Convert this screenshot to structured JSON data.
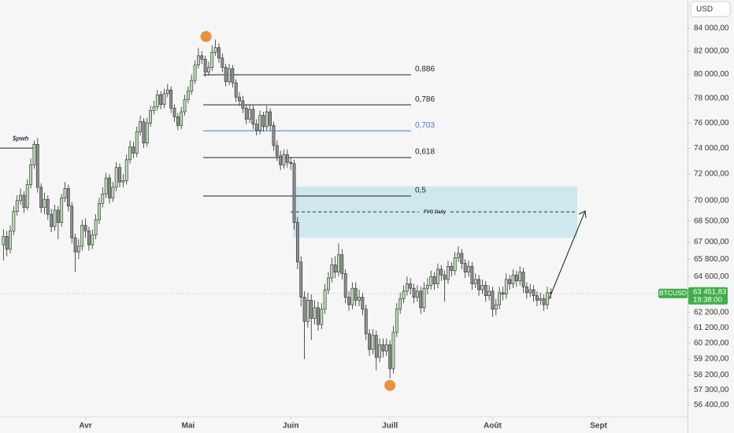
{
  "chart_data": {
    "type": "candlestick",
    "symbol": "BTCUSD",
    "currency": "USD",
    "interval": "1D",
    "countdown": "19:38:00",
    "last_price": {
      "value": 63451.83,
      "label": "63 451,83"
    },
    "log_scale": true,
    "grid": false,
    "up_color": "#b8dcb2",
    "down_color": "#8f8f8f",
    "outline_color": "#2a2a2a",
    "price_line_color": "#3fae4a",
    "ylim": [
      55660,
      86560
    ],
    "yticks": [
      {
        "value": 84000,
        "label": "84 000,00"
      },
      {
        "value": 82000,
        "label": "82 000,00"
      },
      {
        "value": 80000,
        "label": "80 000,00"
      },
      {
        "value": 78000,
        "label": "78 000,00"
      },
      {
        "value": 76000,
        "label": "76 000,00"
      },
      {
        "value": 74000,
        "label": "74 000,00"
      },
      {
        "value": 72000,
        "label": "72 000,00"
      },
      {
        "value": 70000,
        "label": "70 000,00"
      },
      {
        "value": 68500,
        "label": "68 500,00"
      },
      {
        "value": 67000,
        "label": "67 000,00"
      },
      {
        "value": 65800,
        "label": "65 800,00"
      },
      {
        "value": 64600,
        "label": "64 600,00"
      },
      {
        "value": 62200,
        "label": "62 200,00"
      },
      {
        "value": 61200,
        "label": "61 200,00"
      },
      {
        "value": 60200,
        "label": "60 200,00"
      },
      {
        "value": 59200,
        "label": "59 200,00"
      },
      {
        "value": 58200,
        "label": "58 200,00"
      },
      {
        "value": 57300,
        "label": "57 300,00"
      },
      {
        "value": 56400,
        "label": "56 400,00"
      }
    ],
    "xlim": [
      -1,
      200
    ],
    "xticks": [
      {
        "value": 24,
        "label": "Avr"
      },
      {
        "value": 54,
        "label": "Mai"
      },
      {
        "value": 84,
        "label": "Juin"
      },
      {
        "value": 113,
        "label": "Juill"
      },
      {
        "value": 143,
        "label": "Août"
      },
      {
        "value": 174,
        "label": "Sept"
      }
    ],
    "open": [
      66800,
      67400,
      66500,
      67800,
      69200,
      70000,
      70400,
      69500,
      71200,
      72700,
      74300,
      71000,
      69500,
      70100,
      69000,
      68100,
      69300,
      68400,
      70200,
      70900,
      69600,
      67300,
      66300,
      66700,
      68200,
      67800,
      66800,
      67500,
      68600,
      69800,
      70500,
      71700,
      70200,
      71000,
      72500,
      71400,
      71500,
      73100,
      74100,
      73600,
      75300,
      76100,
      74400,
      76000,
      77000,
      77300,
      78300,
      77500,
      78400,
      78700,
      77200,
      76500,
      75800,
      76900,
      77900,
      78600,
      79500,
      80800,
      81600,
      81300,
      80200,
      80600,
      81900,
      82300,
      81400,
      80600,
      79400,
      80500,
      79300,
      78100,
      77800,
      77200,
      76300,
      77100,
      75900,
      75400,
      76600,
      75700,
      76900,
      75800,
      74200,
      73400,
      72700,
      73500,
      72900,
      72800,
      68400,
      65600,
      63200,
      61600,
      63000,
      61800,
      62500,
      61400,
      62400,
      63700,
      64500,
      65400,
      64900,
      66100,
      64800,
      63200,
      62700,
      63800,
      63000,
      63200,
      62400,
      60800,
      59800,
      60700,
      59300,
      60100,
      59700,
      60100,
      58600,
      60900,
      62400,
      63100,
      63600,
      64100,
      63800,
      63200,
      63600,
      62500,
      63800,
      64000,
      64600,
      64100,
      65100,
      64700,
      64400,
      65300,
      65000,
      65900,
      66200,
      65500,
      64900,
      65300,
      64100,
      64400,
      63700,
      64000,
      63300,
      63600,
      62400,
      62700,
      63500,
      63400,
      64400,
      64100,
      64700,
      64300,
      64900,
      63900,
      63500,
      63700,
      63300,
      63000,
      63100,
      62700,
      63500
    ],
    "high": [
      67900,
      67800,
      68200,
      69600,
      70400,
      70900,
      70700,
      71600,
      73200,
      74600,
      74800,
      71300,
      70600,
      70400,
      69400,
      69700,
      69600,
      70500,
      71400,
      71200,
      69900,
      67600,
      67200,
      68600,
      68700,
      68100,
      67900,
      69000,
      70200,
      71000,
      72100,
      72000,
      71400,
      72900,
      72800,
      72000,
      73500,
      74600,
      74500,
      75700,
      76600,
      76400,
      76400,
      77400,
      77800,
      78700,
      78600,
      78800,
      79200,
      79000,
      77500,
      76800,
      77300,
      78300,
      79000,
      80000,
      81200,
      82300,
      82000,
      81600,
      81100,
      82500,
      83000,
      82700,
      81800,
      80900,
      80900,
      80800,
      79600,
      78500,
      78200,
      77500,
      77500,
      77400,
      76300,
      77000,
      76900,
      77400,
      77200,
      76100,
      74600,
      73800,
      73900,
      73900,
      73300,
      73100,
      68800,
      66000,
      63600,
      63500,
      63400,
      63000,
      62900,
      62800,
      64100,
      64900,
      65900,
      66000,
      66900,
      66500,
      65100,
      63600,
      64200,
      64200,
      63700,
      63500,
      62700,
      61100,
      61100,
      61000,
      60500,
      60500,
      60500,
      60400,
      61300,
      62800,
      63500,
      64000,
      64600,
      64500,
      64100,
      64000,
      63900,
      64200,
      64500,
      65000,
      64900,
      65500,
      65400,
      65000,
      65700,
      65600,
      66300,
      66700,
      66500,
      65800,
      65700,
      65600,
      64800,
      64700,
      64400,
      64300,
      64000,
      63900,
      63100,
      63900,
      63900,
      64800,
      64700,
      65100,
      65000,
      65300,
      65200,
      64200,
      64100,
      64000,
      63600,
      63500,
      63400,
      63900,
      63800
    ],
    "low": [
      65700,
      66000,
      66200,
      67500,
      68900,
      69700,
      69100,
      69300,
      70900,
      72400,
      70600,
      69100,
      69000,
      68600,
      67700,
      67800,
      67200,
      68100,
      69900,
      69200,
      66900,
      64900,
      65800,
      66400,
      67300,
      66400,
      66500,
      67200,
      68300,
      69500,
      70200,
      69800,
      69900,
      70700,
      71000,
      71000,
      71200,
      72800,
      73200,
      73300,
      75000,
      74000,
      74100,
      75700,
      76700,
      77000,
      77100,
      77200,
      78100,
      76800,
      76100,
      75400,
      75500,
      76600,
      77600,
      78300,
      79200,
      80500,
      80900,
      79800,
      79900,
      80300,
      81600,
      81000,
      80200,
      79000,
      79100,
      78900,
      77700,
      77400,
      76800,
      75900,
      76000,
      75500,
      75000,
      75100,
      75300,
      75400,
      75400,
      73800,
      73000,
      72300,
      72400,
      72500,
      72300,
      67900,
      65100,
      62600,
      59200,
      61200,
      60400,
      61400,
      61000,
      61100,
      62100,
      63400,
      64200,
      64500,
      64600,
      64400,
      62800,
      62300,
      62400,
      62600,
      62600,
      62000,
      60400,
      59400,
      59500,
      58500,
      59000,
      59300,
      59400,
      58000,
      58300,
      60600,
      62100,
      62800,
      63300,
      63400,
      62800,
      62900,
      62100,
      62200,
      63400,
      63700,
      63700,
      63800,
      64300,
      62900,
      64100,
      64600,
      64700,
      65600,
      65100,
      64500,
      64600,
      63700,
      63800,
      63300,
      63400,
      62900,
      63000,
      61900,
      62000,
      62400,
      63000,
      63100,
      63700,
      63800,
      63900,
      64000,
      63500,
      63100,
      63200,
      62900,
      62600,
      62700,
      62300,
      62400,
      63100
    ],
    "close": [
      67400,
      66500,
      67800,
      69200,
      70000,
      70400,
      69500,
      71200,
      72700,
      74300,
      71000,
      69500,
      70100,
      69000,
      68100,
      69300,
      68400,
      70200,
      70900,
      69600,
      67300,
      66300,
      66700,
      68200,
      67800,
      66800,
      67500,
      68600,
      69800,
      70500,
      71700,
      70200,
      71000,
      72500,
      71400,
      71500,
      73100,
      74100,
      73600,
      75300,
      76100,
      74400,
      76000,
      77000,
      77300,
      78300,
      77500,
      78400,
      78700,
      77200,
      76500,
      75800,
      76900,
      77900,
      78600,
      79500,
      80800,
      81600,
      81300,
      80200,
      80600,
      81900,
      82300,
      81400,
      80600,
      79400,
      80500,
      79300,
      78100,
      77800,
      77200,
      76300,
      77100,
      75900,
      75400,
      76600,
      75700,
      76900,
      75800,
      74200,
      73400,
      72700,
      73500,
      72900,
      72800,
      68400,
      65600,
      63200,
      61600,
      63000,
      61800,
      62500,
      61400,
      62400,
      63700,
      64500,
      65400,
      64900,
      66100,
      64800,
      63200,
      62700,
      63800,
      63000,
      63200,
      62400,
      60800,
      59800,
      60700,
      59300,
      60100,
      59700,
      60100,
      58600,
      60900,
      62400,
      63100,
      63600,
      64100,
      63800,
      63200,
      63600,
      62500,
      63800,
      64000,
      64600,
      64100,
      65100,
      64700,
      64400,
      65300,
      65000,
      65900,
      66200,
      65500,
      64900,
      65300,
      64100,
      64400,
      63700,
      64000,
      63300,
      63600,
      62400,
      62700,
      63500,
      63400,
      64400,
      64100,
      64700,
      64300,
      64900,
      63900,
      63500,
      63700,
      63300,
      63000,
      63100,
      62700,
      63500,
      63450
    ],
    "levels": [
      {
        "label": "0,886",
        "value": 79970,
        "color": "#222222"
      },
      {
        "label": "0,786",
        "value": 77470,
        "color": "#222222"
      },
      {
        "label": "0,703",
        "value": 75370,
        "color": "#4a76e0"
      },
      {
        "label": "0,618",
        "value": 73270,
        "color": "#222222"
      },
      {
        "label": "0,5",
        "value": 70340,
        "color": "#222222"
      }
    ],
    "zone": {
      "label": "FVG Daily",
      "top": 71060,
      "bottom": 67300,
      "mid": 69170,
      "color": "#cfe8ee"
    },
    "reference_line": {
      "label": "$pwh",
      "value": 74000
    },
    "marker_color": "#e8923a"
  }
}
